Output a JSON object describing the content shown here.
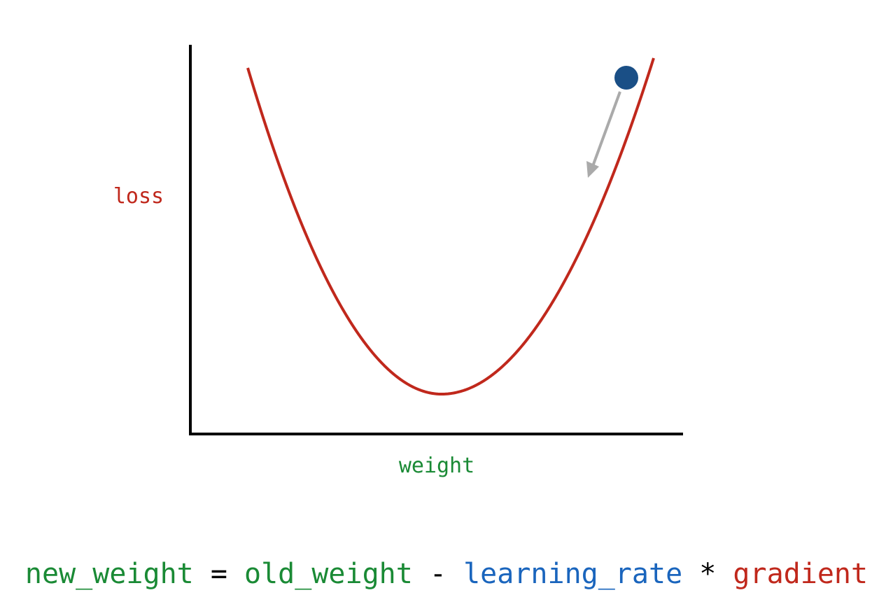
{
  "labels": {
    "y_axis": "loss",
    "x_axis": "weight"
  },
  "formula": {
    "new_weight": "new_weight",
    "equals": " = ",
    "old_weight": "old_weight",
    "minus": " - ",
    "learning_rate": "learning_rate",
    "times": " * ",
    "gradient": "gradient"
  },
  "colors": {
    "curve": "#c0281c",
    "loss_label": "#c0281c",
    "weight_green": "#1a8a35",
    "learning_rate_blue": "#1a65bd",
    "gradient_red": "#c0281c",
    "ball": "#1a4f86",
    "arrow": "#aaaaaa",
    "axes": "#000000"
  }
}
